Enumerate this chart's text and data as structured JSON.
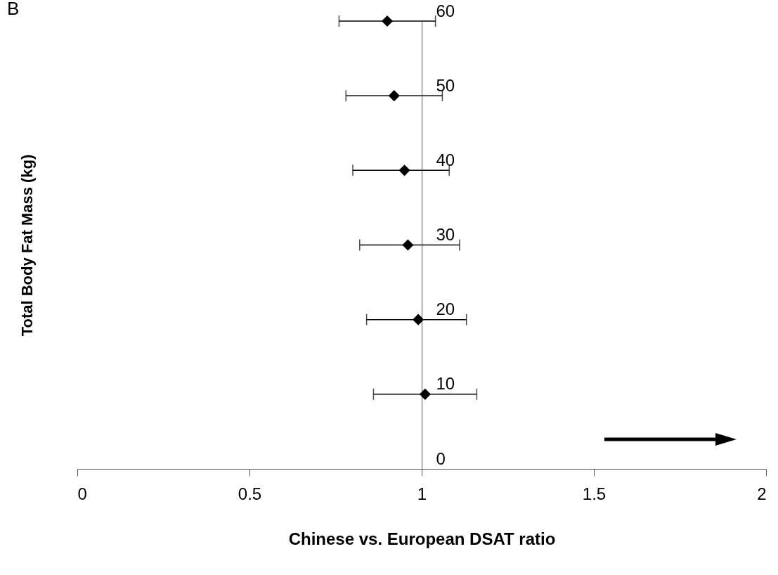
{
  "chart_data": {
    "type": "scatter",
    "title": "B",
    "xlabel": "Chinese vs. European DSAT ratio",
    "ylabel": "Total Body Fat Mass (kg)",
    "series": [
      {
        "color": "#000000",
        "x": [
          1.01,
          0.99,
          0.96,
          0.95,
          0.92,
          0.9
        ],
        "values": [
          10,
          20,
          30,
          40,
          50,
          60
        ],
        "xerrors": [
          [
            0.86,
            1.16
          ],
          [
            0.84,
            1.13
          ],
          [
            0.82,
            1.11
          ],
          [
            0.8,
            1.08
          ],
          [
            0.78,
            1.06
          ],
          [
            0.76,
            1.04
          ]
        ]
      }
    ],
    "marker": "diamond",
    "xlim": [
      0,
      2
    ],
    "xticks": [
      0,
      0.5,
      1,
      1.5,
      2
    ],
    "ylim": [
      0,
      60
    ],
    "yticks": [
      0,
      10,
      20,
      30,
      40,
      50,
      60
    ]
  }
}
